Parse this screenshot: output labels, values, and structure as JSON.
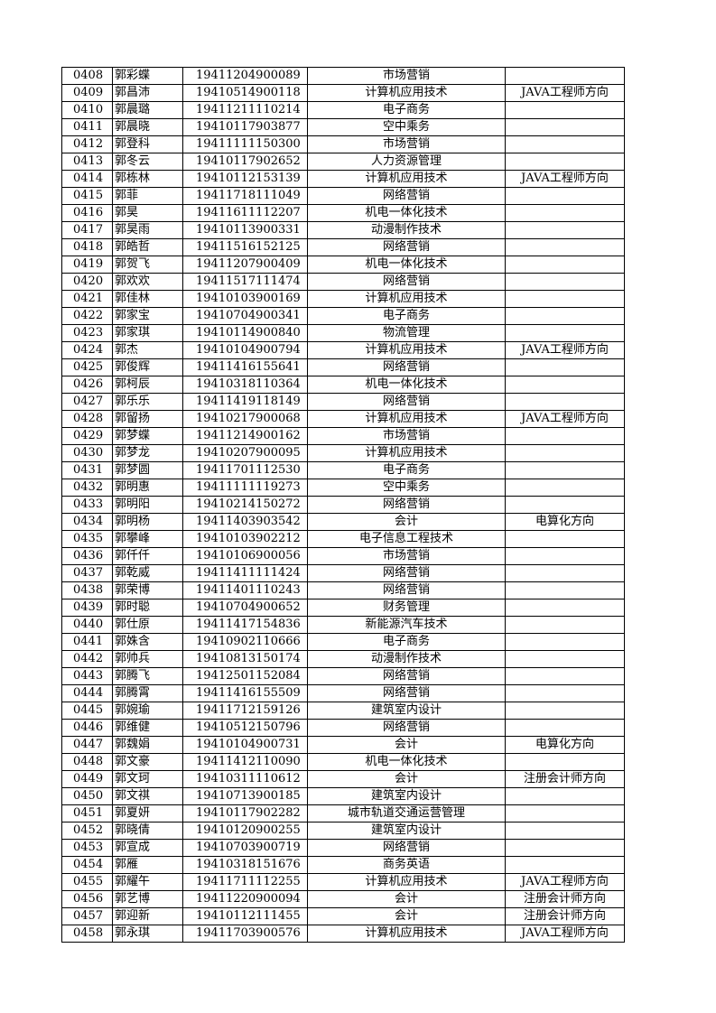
{
  "table": {
    "rows": [
      [
        "0408",
        "郭彩蝶",
        "19411204900089",
        "市场营销",
        ""
      ],
      [
        "0409",
        "郭昌沛",
        "19410514900118",
        "计算机应用技术",
        "JAVA工程师方向"
      ],
      [
        "0410",
        "郭晨璐",
        "19411211110214",
        "电子商务",
        ""
      ],
      [
        "0411",
        "郭晨晓",
        "19410117903877",
        "空中乘务",
        ""
      ],
      [
        "0412",
        "郭登科",
        "19411111150300",
        "市场营销",
        ""
      ],
      [
        "0413",
        "郭冬云",
        "19410117902652",
        "人力资源管理",
        ""
      ],
      [
        "0414",
        "郭栋林",
        "19410112153139",
        "计算机应用技术",
        "JAVA工程师方向"
      ],
      [
        "0415",
        "郭菲",
        "19411718111049",
        "网络营销",
        ""
      ],
      [
        "0416",
        "郭昊",
        "19411611112207",
        "机电一体化技术",
        ""
      ],
      [
        "0417",
        "郭昊雨",
        "19410113900331",
        "动漫制作技术",
        ""
      ],
      [
        "0418",
        "郭皓哲",
        "19411516152125",
        "网络营销",
        ""
      ],
      [
        "0419",
        "郭贺飞",
        "19411207900409",
        "机电一体化技术",
        ""
      ],
      [
        "0420",
        "郭欢欢",
        "19411517111474",
        "网络营销",
        ""
      ],
      [
        "0421",
        "郭佳林",
        "19410103900169",
        "计算机应用技术",
        ""
      ],
      [
        "0422",
        "郭家宝",
        "19410704900341",
        "电子商务",
        ""
      ],
      [
        "0423",
        "郭家琪",
        "19410114900840",
        "物流管理",
        ""
      ],
      [
        "0424",
        "郭杰",
        "19410104900794",
        "计算机应用技术",
        "JAVA工程师方向"
      ],
      [
        "0425",
        "郭俊辉",
        "19411416155641",
        "网络营销",
        ""
      ],
      [
        "0426",
        "郭柯辰",
        "19410318110364",
        "机电一体化技术",
        ""
      ],
      [
        "0427",
        "郭乐乐",
        "19411419118149",
        "网络营销",
        ""
      ],
      [
        "0428",
        "郭留扬",
        "19410217900068",
        "计算机应用技术",
        "JAVA工程师方向"
      ],
      [
        "0429",
        "郭梦蝶",
        "19411214900162",
        "市场营销",
        ""
      ],
      [
        "0430",
        "郭梦龙",
        "19410207900095",
        "计算机应用技术",
        ""
      ],
      [
        "0431",
        "郭梦圆",
        "19411701112530",
        "电子商务",
        ""
      ],
      [
        "0432",
        "郭明惠",
        "19411111119273",
        "空中乘务",
        ""
      ],
      [
        "0433",
        "郭明阳",
        "19410214150272",
        "网络营销",
        ""
      ],
      [
        "0434",
        "郭明杨",
        "19411403903542",
        "会计",
        "电算化方向"
      ],
      [
        "0435",
        "郭攀峰",
        "19410103902212",
        "电子信息工程技术",
        ""
      ],
      [
        "0436",
        "郭仟仟",
        "19410106900056",
        "市场营销",
        ""
      ],
      [
        "0437",
        "郭乾威",
        "19411411111424",
        "网络营销",
        ""
      ],
      [
        "0438",
        "郭荣博",
        "19411401110243",
        "网络营销",
        ""
      ],
      [
        "0439",
        "郭时聪",
        "19410704900652",
        "财务管理",
        ""
      ],
      [
        "0440",
        "郭仕原",
        "19411417154836",
        "新能源汽车技术",
        ""
      ],
      [
        "0441",
        "郭姝含",
        "19410902110666",
        "电子商务",
        ""
      ],
      [
        "0442",
        "郭帅兵",
        "19410813150174",
        "动漫制作技术",
        ""
      ],
      [
        "0443",
        "郭腾飞",
        "19412501152084",
        "网络营销",
        ""
      ],
      [
        "0444",
        "郭腾霄",
        "19411416155509",
        "网络营销",
        ""
      ],
      [
        "0445",
        "郭婉瑜",
        "19411712159126",
        "建筑室内设计",
        ""
      ],
      [
        "0446",
        "郭维健",
        "19410512150796",
        "网络营销",
        ""
      ],
      [
        "0447",
        "郭魏娟",
        "19410104900731",
        "会计",
        "电算化方向"
      ],
      [
        "0448",
        "郭文豪",
        "19411412110090",
        "机电一体化技术",
        ""
      ],
      [
        "0449",
        "郭文珂",
        "19410311110612",
        "会计",
        "注册会计师方向"
      ],
      [
        "0450",
        "郭文祺",
        "19410713900185",
        "建筑室内设计",
        ""
      ],
      [
        "0451",
        "郭夏妍",
        "19410117902282",
        "城市轨道交通运营管理",
        ""
      ],
      [
        "0452",
        "郭晓倩",
        "19410120900255",
        "建筑室内设计",
        ""
      ],
      [
        "0453",
        "郭宣成",
        "19410703900719",
        "网络营销",
        ""
      ],
      [
        "0454",
        "郭雁",
        "19410318151676",
        "商务英语",
        ""
      ],
      [
        "0455",
        "郭耀午",
        "19411711112255",
        "计算机应用技术",
        "JAVA工程师方向"
      ],
      [
        "0456",
        "郭艺博",
        "19411220900094",
        "会计",
        "注册会计师方向"
      ],
      [
        "0457",
        "郭迎新",
        "19410112111455",
        "会计",
        "注册会计师方向"
      ],
      [
        "0458",
        "郭永琪",
        "19411703900576",
        "计算机应用技术",
        "JAVA工程师方向"
      ]
    ]
  }
}
